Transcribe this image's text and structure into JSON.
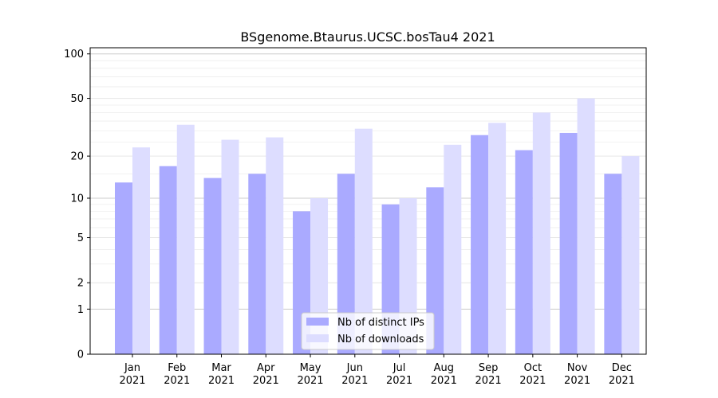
{
  "chart_data": {
    "type": "bar",
    "title": "BSgenome.Btaurus.UCSC.bosTau4 2021",
    "xlabel": "",
    "ylabel": "",
    "yscale": "log(1+y)",
    "ylim": [
      0,
      110
    ],
    "yticks": [
      0,
      1,
      2,
      5,
      10,
      20,
      50,
      100
    ],
    "grid": true,
    "legend_position": "lower center",
    "categories": [
      "Jan",
      "Feb",
      "Mar",
      "Apr",
      "May",
      "Jun",
      "Jul",
      "Aug",
      "Sep",
      "Oct",
      "Nov",
      "Dec"
    ],
    "year": "2021",
    "series": [
      {
        "name": "Nb of distinct IPs",
        "color": "#aaaaff",
        "values": [
          13,
          17,
          14,
          15,
          8,
          15,
          9,
          12,
          28,
          22,
          29,
          15
        ]
      },
      {
        "name": "Nb of downloads",
        "color": "#ddddff",
        "values": [
          23,
          33,
          26,
          27,
          10,
          31,
          10,
          24,
          34,
          40,
          50,
          20
        ]
      }
    ]
  }
}
